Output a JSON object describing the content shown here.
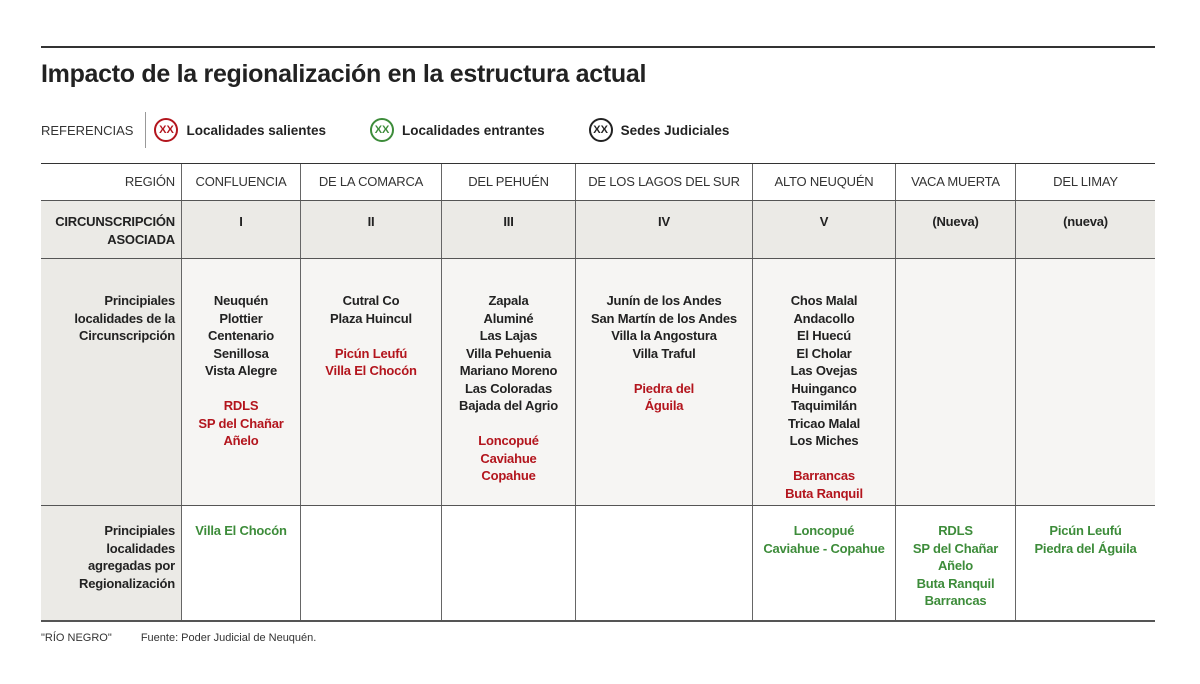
{
  "title": "Impacto de la regionalización en la estructura actual",
  "references": {
    "label": "REFERENCIAS",
    "items": [
      {
        "symbol": "XX",
        "label": "Localidades salientes",
        "color": "#b3151d"
      },
      {
        "symbol": "XX",
        "label": "Localidades entrantes",
        "color": "#3d8c3a"
      },
      {
        "symbol": "XX",
        "label": "Sedes Judiciales",
        "color": "#222222"
      }
    ]
  },
  "table": {
    "row_labels": [
      "REGIÓN",
      "CIRCUNSCRIPCIÓN ASOCIADA",
      "Principiales localidades de la Circunscripción",
      "Principiales localidades agregadas por Regionalización"
    ],
    "columns": [
      {
        "region": "CONFLUENCIA",
        "circ": "I",
        "localidades": [
          [
            "Neuquén",
            "Plottier",
            "Centenario",
            "Senillosa",
            "Vista Alegre"
          ],
          [
            "RDLS",
            "SP del Chañar",
            "Añelo"
          ]
        ],
        "agregadas": [
          "Villa El Chocón"
        ]
      },
      {
        "region": "DE LA COMARCA",
        "circ": "II",
        "localidades": [
          [
            "Cutral Co",
            "Plaza Huincul"
          ],
          [
            "Picún Leufú",
            "Villa El Chocón"
          ]
        ],
        "agregadas": []
      },
      {
        "region": "DEL PEHUÉN",
        "circ": "III",
        "localidades": [
          [
            "Zapala",
            "Aluminé",
            "Las Lajas",
            "Villa Pehuenia",
            "Mariano Moreno",
            "Las Coloradas",
            "Bajada del Agrio"
          ],
          [
            "Loncopué",
            "Caviahue",
            "Copahue"
          ]
        ],
        "agregadas": []
      },
      {
        "region": "DE LOS LAGOS DEL SUR",
        "circ": "IV",
        "localidades": [
          [
            "Junín de los Andes",
            "San Martín de los Andes",
            "Villa la Angostura",
            "Villa Traful"
          ],
          [
            "Piedra del",
            "Águila"
          ]
        ],
        "agregadas": []
      },
      {
        "region": "ALTO NEUQUÉN",
        "circ": "V",
        "localidades": [
          [
            "Chos Malal",
            "Andacollo",
            "El Huecú",
            "El Cholar",
            "Las Ovejas",
            "Huinganco",
            "Taquimilán",
            "Tricao Malal",
            "Los Miches"
          ],
          [
            "Barrancas",
            "Buta Ranquil"
          ]
        ],
        "agregadas": [
          "Loncopué",
          "Caviahue - Copahue"
        ]
      },
      {
        "region": "VACA MUERTA",
        "circ": "(Nueva)",
        "localidades": [
          [],
          []
        ],
        "agregadas": [
          "RDLS",
          "SP del Chañar",
          "Añelo",
          "Buta Ranquil",
          "Barrancas"
        ]
      },
      {
        "region": "DEL LIMAY",
        "circ": "(nueva)",
        "localidades": [
          [],
          []
        ],
        "agregadas": [
          "Picún Leufú",
          "Piedra del Águila"
        ]
      }
    ]
  },
  "footer": {
    "credit": "\"RÍO NEGRO\"",
    "source": "Fuente: Poder Judicial de Neuquén."
  }
}
